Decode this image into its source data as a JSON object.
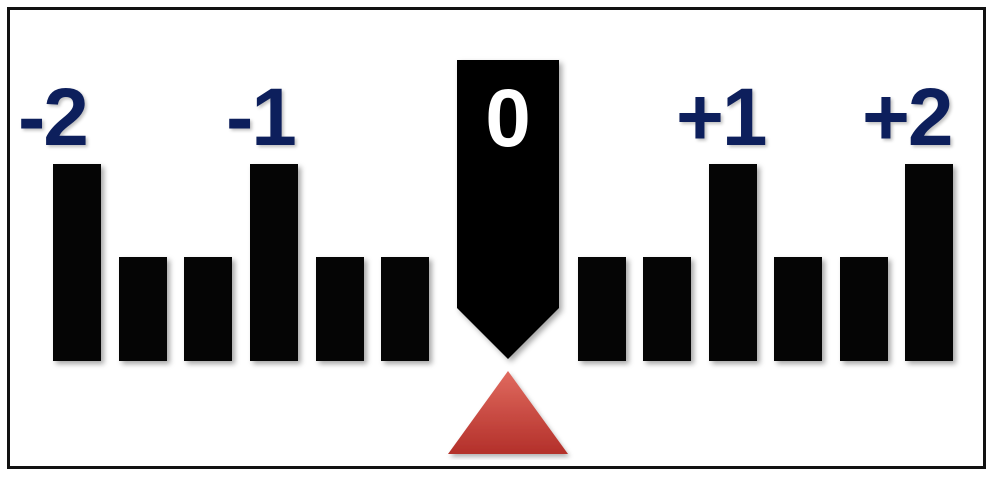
{
  "scale": {
    "labels": {
      "minus2": "-2",
      "minus1": "-1",
      "zero": "0",
      "plus1": "+1",
      "plus2": "+2"
    },
    "pointer_value": 0
  },
  "colors": {
    "tick": "#050505",
    "label": "#0d1f5c",
    "pointer": "#050505",
    "pointer_label": "#ffffff",
    "marker": "#c0392b"
  }
}
